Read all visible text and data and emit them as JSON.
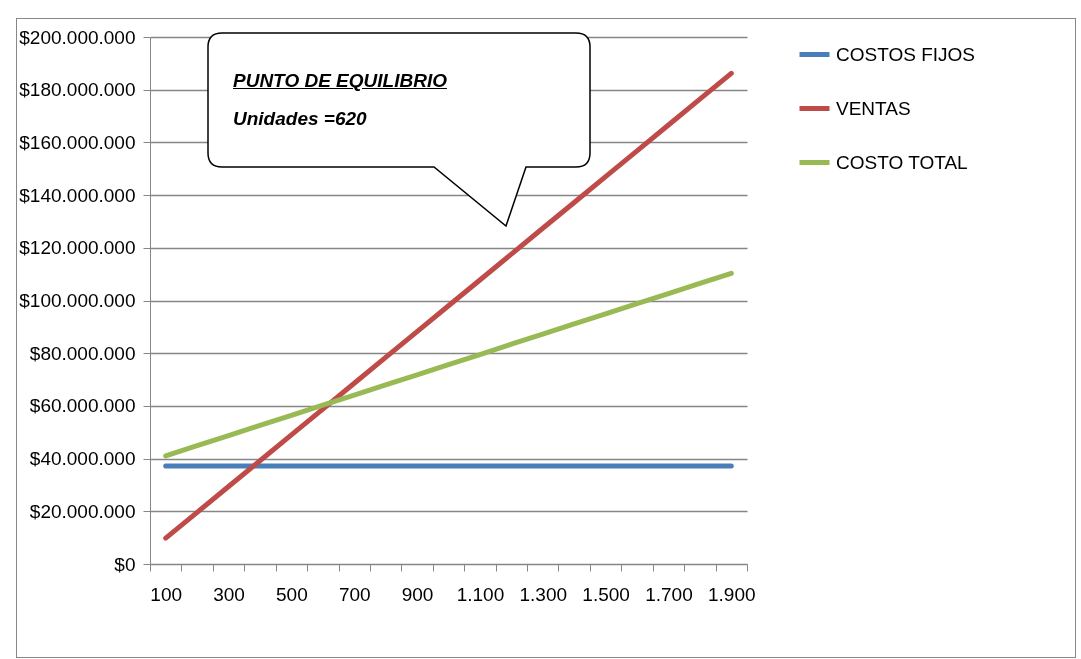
{
  "chart_data": {
    "type": "line",
    "categories": [
      "100",
      null,
      "300",
      null,
      "500",
      null,
      "700",
      null,
      "900",
      null,
      "1.100",
      null,
      "1.300",
      null,
      "1.500",
      null,
      "1.700",
      null,
      "1.900"
    ],
    "series": [
      {
        "name": "COSTOS FIJOS",
        "color": "#4a7ebb",
        "values": [
          37200000,
          37200000,
          37200000,
          37200000,
          37200000,
          37200000,
          37200000,
          37200000,
          37200000,
          37200000,
          37200000,
          37200000,
          37200000,
          37200000,
          37200000,
          37200000,
          37200000,
          37200000,
          37200000
        ]
      },
      {
        "name": "VENTAS",
        "color": "#be4b48",
        "values": [
          9800000,
          19600000,
          29400000,
          39200000,
          49000000,
          58800000,
          68600000,
          78400000,
          88200000,
          98000000,
          107800000,
          117600000,
          127400000,
          137200000,
          147000000,
          156800000,
          166600000,
          176400000,
          186200000
        ]
      },
      {
        "name": "COSTO TOTAL",
        "color": "#98b954",
        "values": [
          41000000,
          44900000,
          48700000,
          52600000,
          56400000,
          60300000,
          64100000,
          68000000,
          71800000,
          75700000,
          79500000,
          83400000,
          87200000,
          91100000,
          94900000,
          98800000,
          102600000,
          106500000,
          110300000
        ]
      }
    ],
    "ylim": [
      0,
      200000000
    ],
    "yticks": [
      {
        "value": 0,
        "label": "$0"
      },
      {
        "value": 20000000,
        "label": "$20.000.000"
      },
      {
        "value": 40000000,
        "label": "$40.000.000"
      },
      {
        "value": 60000000,
        "label": "$60.000.000"
      },
      {
        "value": 80000000,
        "label": "$80.000.000"
      },
      {
        "value": 100000000,
        "label": "$100.000.000"
      },
      {
        "value": 120000000,
        "label": "$120.000.000"
      },
      {
        "value": 140000000,
        "label": "$140.000.000"
      },
      {
        "value": 160000000,
        "label": "$160.000.000"
      },
      {
        "value": 180000000,
        "label": "$180.000.000"
      },
      {
        "value": 200000000,
        "label": "$200.000.000"
      }
    ],
    "grid": "y",
    "legend": "right",
    "line_style": "solid",
    "marker": "none",
    "annotations": [
      "PUNTO DE EQUILIBRIO",
      "Unidades =620"
    ]
  }
}
